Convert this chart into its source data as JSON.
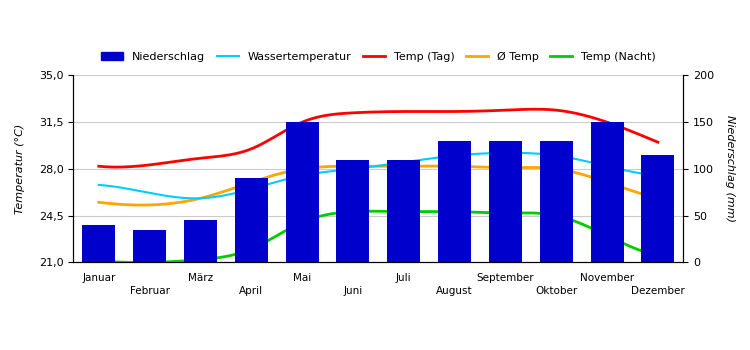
{
  "months_odd": [
    "Januar",
    "März",
    "Mai",
    "Juli",
    "September",
    "November"
  ],
  "months_even": [
    "Februar",
    "April",
    "Juni",
    "August",
    "Oktober",
    "Dezember"
  ],
  "months_all": [
    "Jan",
    "Feb",
    "Mär",
    "Apr",
    "Mai",
    "Jun",
    "Jul",
    "Aug",
    "Sep",
    "Okt",
    "Nov",
    "Dez"
  ],
  "bar_heights": [
    40,
    35,
    45,
    90,
    150,
    110,
    110,
    130,
    130,
    130,
    150,
    115
  ],
  "temp_tag": [
    28.2,
    28.3,
    28.8,
    29.5,
    31.5,
    32.2,
    32.3,
    32.3,
    32.4,
    32.4,
    31.5,
    30.0
  ],
  "temp_avg": [
    25.5,
    25.3,
    25.8,
    27.0,
    28.0,
    28.2,
    28.2,
    28.2,
    28.1,
    28.0,
    27.0,
    25.8
  ],
  "temp_nacht": [
    21.1,
    21.0,
    21.2,
    22.0,
    24.0,
    24.8,
    24.8,
    24.8,
    24.7,
    24.5,
    23.0,
    21.5
  ],
  "wassertemp": [
    26.8,
    26.2,
    25.8,
    26.5,
    27.5,
    28.0,
    28.5,
    29.0,
    29.2,
    29.0,
    28.2,
    27.5
  ],
  "bar_color": "#0000CC",
  "temp_tag_color": "#FF0000",
  "temp_avg_color": "#FFA500",
  "temp_nacht_color": "#00CC00",
  "wassertemp_color": "#00CCFF",
  "ylabel_left": "Temperatur (°C)",
  "ylabel_right": "Niederschlag (mm)",
  "ylim_left": [
    21.0,
    35.0
  ],
  "ylim_right": [
    0,
    200
  ],
  "yticks_left": [
    21.0,
    24.5,
    28.0,
    31.5,
    35.0
  ],
  "yticks_right": [
    0,
    50,
    100,
    150,
    200
  ],
  "background_color": "#FFFFFF",
  "grid_color": "#CCCCCC",
  "legend_labels": [
    "Niederschlag",
    "Wassertemperatur",
    "Temp (Tag)",
    "Ø Temp",
    "Temp (Nacht)"
  ]
}
